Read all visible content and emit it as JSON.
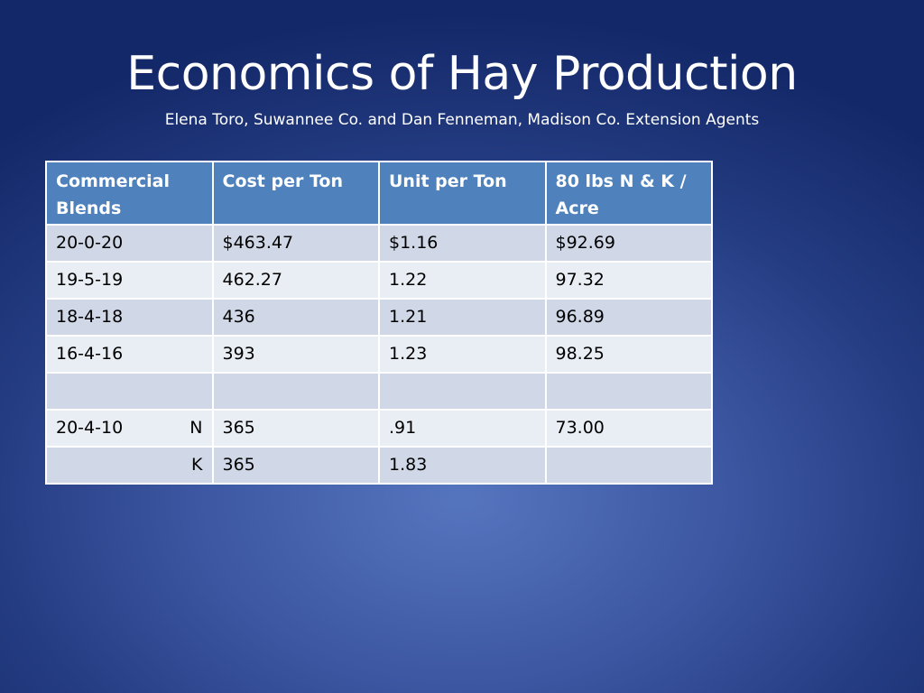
{
  "slide": {
    "title": "Economics of Hay Production",
    "subtitle": "Elena Toro, Suwannee Co. and Dan Fenneman, Madison Co. Extension  Agents"
  },
  "table": {
    "headers": [
      "Commercial Blends",
      "Cost per Ton",
      "Unit per Ton",
      "80 lbs N & K / Acre"
    ],
    "rows": [
      {
        "blend": "20-0-20",
        "nutrient": "",
        "cost": "$463.47",
        "unit": "$1.16",
        "per_acre": "$92.69"
      },
      {
        "blend": "19-5-19",
        "nutrient": "",
        "cost": "462.27",
        "unit": "1.22",
        "per_acre": "97.32"
      },
      {
        "blend": "18-4-18",
        "nutrient": "",
        "cost": "436",
        "unit": "1.21",
        "per_acre": "96.89"
      },
      {
        "blend": "16-4-16",
        "nutrient": "",
        "cost": "393",
        "unit": "1.23",
        "per_acre": "98.25"
      },
      {
        "blend": "",
        "nutrient": "",
        "cost": "",
        "unit": "",
        "per_acre": ""
      },
      {
        "blend": "20-4-10",
        "nutrient": "N",
        "cost": "365",
        "unit": ".91",
        "per_acre": "73.00"
      },
      {
        "blend": "",
        "nutrient": "K",
        "cost": "365",
        "unit": "1.83",
        "per_acre": ""
      }
    ]
  },
  "colors": {
    "header_fill": "#4f81bd",
    "row_odd_fill": "#d0d8e8",
    "row_even_fill": "#e9edf4",
    "background_center": "#5675bf",
    "background_edge": "#132868"
  }
}
